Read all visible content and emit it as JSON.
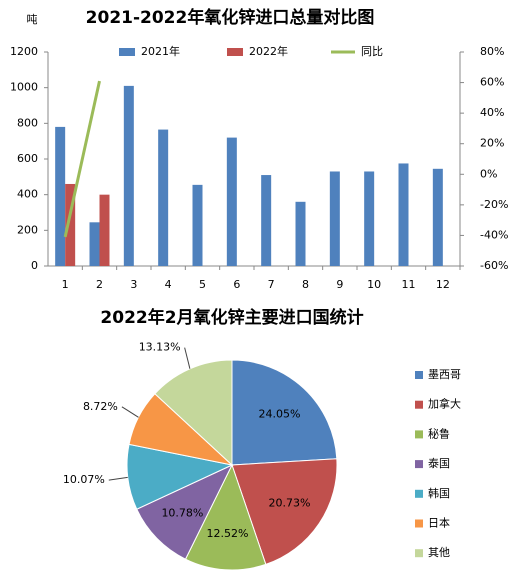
{
  "chart_data": [
    {
      "type": "bar",
      "title": "2021-2022年氧化锌进口总量对比图",
      "y_label": "吨",
      "categories": [
        "1",
        "2",
        "3",
        "4",
        "5",
        "6",
        "7",
        "8",
        "9",
        "10",
        "11",
        "12"
      ],
      "series": [
        {
          "name": "2021年",
          "color": "#4f81bd",
          "values": [
            780,
            245,
            1010,
            765,
            455,
            720,
            510,
            360,
            530,
            530,
            575,
            545
          ]
        },
        {
          "name": "2022年",
          "color": "#c0504d",
          "values": [
            460,
            400,
            null,
            null,
            null,
            null,
            null,
            null,
            null,
            null,
            null,
            null
          ]
        },
        {
          "name": "同比",
          "type": "line",
          "axis": "y2",
          "color": "#9bbb59",
          "values": [
            -41,
            61,
            null,
            null,
            null,
            null,
            null,
            null,
            null,
            null,
            null,
            null
          ]
        }
      ],
      "ylim": [
        0,
        1200
      ],
      "yticks": [
        0,
        200,
        400,
        600,
        800,
        1000,
        1200
      ],
      "y2lim": [
        -60,
        80
      ],
      "y2ticks": [
        {
          "value": -60,
          "label": "-60%"
        },
        {
          "value": -40,
          "label": "-40%"
        },
        {
          "value": -20,
          "label": "-20%"
        },
        {
          "value": 0,
          "label": "0%"
        },
        {
          "value": 20,
          "label": "20%"
        },
        {
          "value": 40,
          "label": "40%"
        },
        {
          "value": 60,
          "label": "60%"
        },
        {
          "value": 80,
          "label": "80%"
        }
      ],
      "legend": "top"
    },
    {
      "type": "pie",
      "title": "2022年2月氧化锌主要进口国统计",
      "categories": [
        "墨西哥",
        "加拿大",
        "秘鲁",
        "泰国",
        "韩国",
        "日本",
        "其他"
      ],
      "values": [
        24.05,
        20.73,
        12.52,
        10.78,
        10.07,
        8.72,
        13.13
      ],
      "value_labels": [
        "24.05%",
        "20.73%",
        "12.52%",
        "10.78%",
        "10.07%",
        "8.72%",
        "13.13%"
      ],
      "colors": [
        "#4f81bd",
        "#c0504d",
        "#9bbb59",
        "#8064a2",
        "#4bacc6",
        "#f79646",
        "#c4d79b"
      ],
      "legend": "right"
    }
  ]
}
